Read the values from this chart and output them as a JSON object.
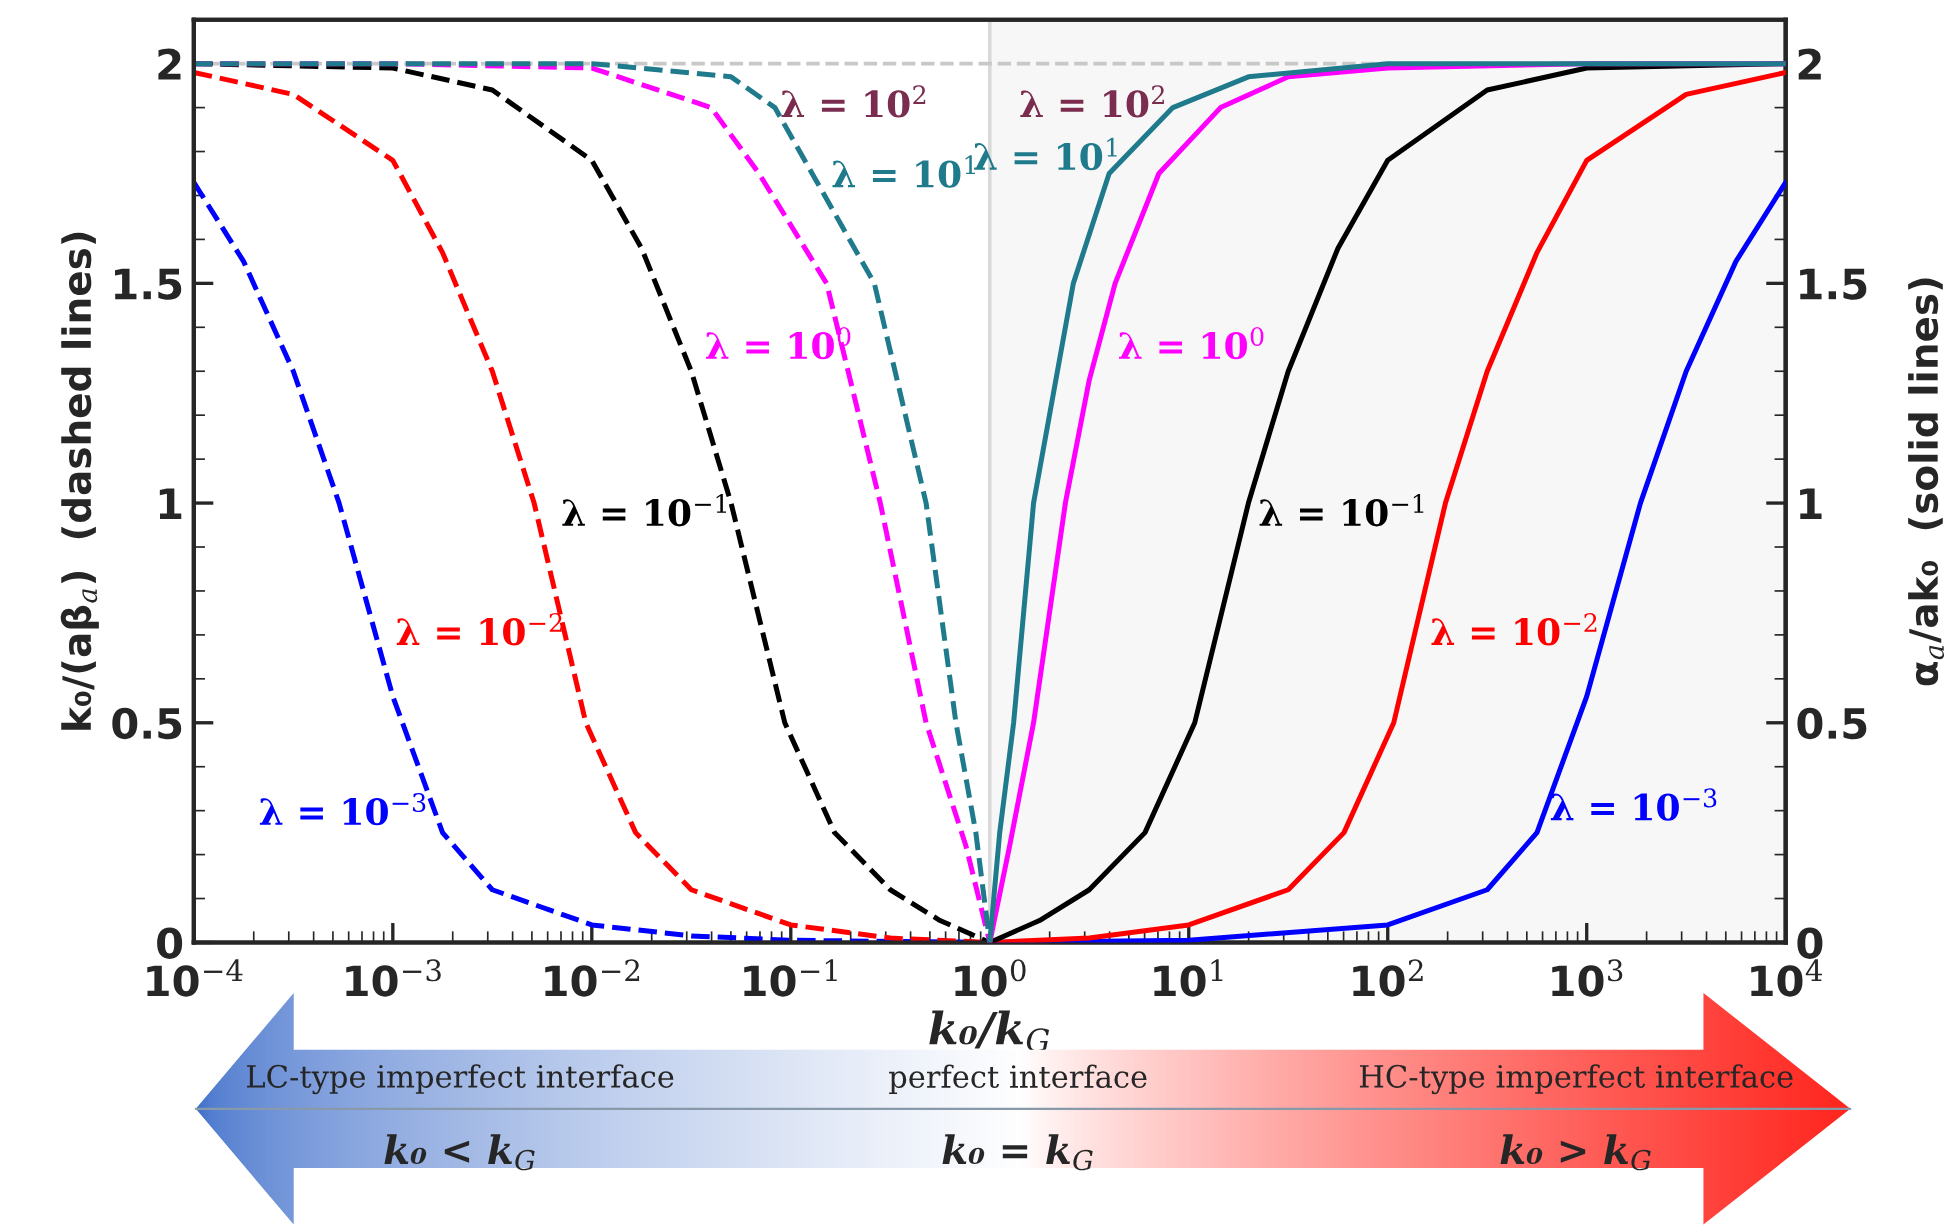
{
  "chart_data": {
    "type": "line",
    "xlabel": "k₀/k$_{G}$",
    "ylabel": "k₀/(aβ$_{a}$)  (dashed lines)",
    "y2label": "α$_{a}$/ak₀  (solid lines)",
    "log": "x",
    "xlim": [
      0.0001,
      10000
    ],
    "ylim": [
      0,
      2.1
    ],
    "y2lim": [
      0,
      2.1
    ],
    "xticks": [
      {
        "value": 0.0001,
        "label": "10$^{−4}$"
      },
      {
        "value": 0.001,
        "label": "10$^{−3}$"
      },
      {
        "value": 0.01,
        "label": "10$^{−2}$"
      },
      {
        "value": 0.1,
        "label": "10$^{−1}$"
      },
      {
        "value": 1,
        "label": "10$^{0}$"
      },
      {
        "value": 10,
        "label": "10$^{1}$"
      },
      {
        "value": 100,
        "label": "10$^{2}$"
      },
      {
        "value": 1000,
        "label": "10$^{3}$"
      },
      {
        "value": 10000,
        "label": "10$^{4}$"
      }
    ],
    "yticks": [
      0,
      0.5,
      1,
      1.5,
      2
    ],
    "y2ticks": [
      0,
      0.5,
      1,
      1.5,
      2
    ],
    "bands": [
      {
        "axis": "x",
        "from": 1,
        "to": 10000,
        "color": "#f7f7f7"
      }
    ],
    "ref_lines": [
      {
        "axis": "x",
        "value": 1,
        "color": "#d9d9d9",
        "line_style": "solid"
      },
      {
        "axis": "y",
        "value": 2,
        "color": "#c8c8c8",
        "line_style": "dashed"
      }
    ],
    "series": [
      {
        "name": "λ = 10$^{−3}$",
        "color": "#0000ff",
        "line_style": "dashed",
        "x": [
          0.0001,
          0.0001778,
          0.0003162,
          0.000537,
          0.001,
          0.001778,
          0.003162,
          0.01,
          0.03162,
          0.1,
          1
        ],
        "values": [
          1.73,
          1.55,
          1.3,
          1,
          0.56,
          0.25,
          0.12,
          0.04,
          0.015,
          0.005,
          0
        ]
      },
      {
        "name": "λ = 10$^{−2}$",
        "color": "#ff0000",
        "line_style": "dashed",
        "x": [
          0.0001,
          0.0003162,
          0.001,
          0.001778,
          0.003162,
          0.00513,
          0.00933,
          0.0166,
          0.03162,
          0.1,
          0.3162,
          1
        ],
        "values": [
          1.98,
          1.93,
          1.78,
          1.57,
          1.3,
          1,
          0.5,
          0.25,
          0.12,
          0.04,
          0.01,
          0
        ]
      },
      {
        "name": "λ = 10$^{−1}$",
        "color": "#000000",
        "line_style": "dashed",
        "x": [
          0.0001,
          0.001,
          0.003162,
          0.01,
          0.01778,
          0.03162,
          0.0501,
          0.0933,
          0.166,
          0.3162,
          0.5623,
          1
        ],
        "values": [
          2,
          1.99,
          1.94,
          1.78,
          1.58,
          1.3,
          1,
          0.5,
          0.25,
          0.12,
          0.05,
          0
        ]
      },
      {
        "name": "λ = 10$^{0}$",
        "color": "#ff00ff",
        "line_style": "dashed",
        "x": [
          0.0001,
          0.001,
          0.01,
          0.0398,
          0.0692,
          0.1514,
          0.2818,
          0.4786,
          0.7586,
          1
        ],
        "values": [
          2,
          2,
          1.99,
          1.9,
          1.75,
          1.5,
          1,
          0.5,
          0.22,
          0
        ]
      },
      {
        "name": "λ = 10$^{1}$",
        "color": "#1f7a8c",
        "line_style": "dashed",
        "x": [
          0.0001,
          0.01,
          0.0501,
          0.0832,
          0.1318,
          0.263,
          0.4786,
          0.676,
          0.851,
          1
        ],
        "values": [
          2,
          2,
          1.97,
          1.9,
          1.74,
          1.5,
          1,
          0.5,
          0.25,
          0
        ]
      },
      {
        "name": "λ = 10$^{−3}$",
        "color": "#0000ff",
        "line_style": "solid",
        "axis": "y2",
        "x": [
          1,
          10,
          100,
          316.2,
          562.3,
          1000,
          1862,
          3162,
          5623,
          10000
        ],
        "values": [
          0,
          0.005,
          0.04,
          0.12,
          0.25,
          0.56,
          1,
          1.3,
          1.55,
          1.73
        ]
      },
      {
        "name": "λ = 10$^{−2}$",
        "color": "#ff0000",
        "line_style": "solid",
        "axis": "y2",
        "x": [
          1,
          3.162,
          10,
          31.62,
          60.26,
          107.2,
          195.0,
          316.2,
          562.3,
          1000,
          3162,
          10000
        ],
        "values": [
          0,
          0.01,
          0.04,
          0.12,
          0.25,
          0.5,
          1,
          1.3,
          1.57,
          1.78,
          1.93,
          1.98
        ]
      },
      {
        "name": "λ = 10$^{−1}$",
        "color": "#000000",
        "line_style": "solid",
        "axis": "y2",
        "x": [
          1,
          1.778,
          3.162,
          6.026,
          10.72,
          19.95,
          31.62,
          56.23,
          100,
          316.2,
          1000,
          10000
        ],
        "values": [
          0,
          0.05,
          0.12,
          0.25,
          0.5,
          1,
          1.3,
          1.58,
          1.78,
          1.94,
          1.99,
          2
        ]
      },
      {
        "name": "λ = 10$^{0}$",
        "color": "#ff00ff",
        "line_style": "solid",
        "axis": "y2",
        "x": [
          1,
          1.259,
          1.66,
          2.399,
          3.162,
          4.266,
          7.079,
          14.45,
          31.62,
          100,
          1000,
          10000
        ],
        "values": [
          0,
          0.22,
          0.5,
          1,
          1.28,
          1.5,
          1.75,
          1.9,
          1.97,
          1.99,
          2,
          2
        ]
      },
      {
        "name": "λ = 10$^{1}$",
        "color": "#1f7a8c",
        "line_style": "solid",
        "axis": "y2",
        "x": [
          1,
          1.122,
          1.318,
          1.66,
          2.63,
          3.981,
          8.318,
          19.95,
          100,
          10000
        ],
        "values": [
          0,
          0.25,
          0.5,
          1,
          1.5,
          1.75,
          1.9,
          1.97,
          2,
          2
        ]
      }
    ],
    "annotations": [
      "λ = 10$^{2}$",
      "λ = 10$^{2}$",
      "LC-type imperfect interface",
      "k₀ < k$_{G}$",
      "perfect interface",
      "k₀ = k$_{G}$",
      "HC-type imperfect interface",
      "k₀ > k$_{G}$"
    ]
  }
}
